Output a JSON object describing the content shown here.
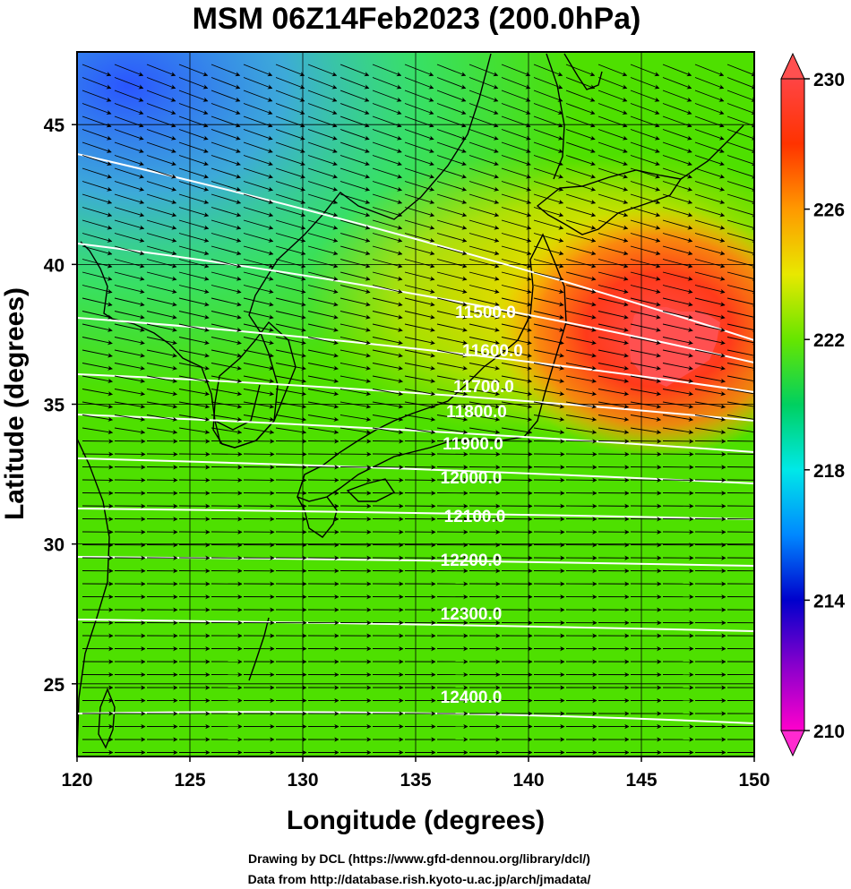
{
  "title": "MSM 06Z14Feb2023 (200.0hPa)",
  "x_axis": {
    "label": "Longitude (degrees)",
    "ticks": [
      "120",
      "125",
      "130",
      "135",
      "140",
      "145",
      "150"
    ],
    "range": [
      120,
      150
    ]
  },
  "y_axis": {
    "label": "Latitude  (degrees)",
    "ticks": [
      "25",
      "30",
      "35",
      "40",
      "45"
    ],
    "range": [
      22.4,
      47.6
    ]
  },
  "colorbar": {
    "ticks": [
      "230",
      "226",
      "222",
      "218",
      "214",
      "210"
    ],
    "range": [
      210,
      230
    ],
    "colors": [
      "#ff00cc",
      "#8800cc",
      "#0000cc",
      "#0088ff",
      "#00e8e8",
      "#00d060",
      "#66e600",
      "#e8e800",
      "#ff9900",
      "#ff3300",
      "#ff4444"
    ]
  },
  "contours": [
    {
      "label": "11500.0"
    },
    {
      "label": "11600.0"
    },
    {
      "label": "11700.0"
    },
    {
      "label": "11800.0"
    },
    {
      "label": "11900.0"
    },
    {
      "label": "12000.0"
    },
    {
      "label": "12100.0"
    },
    {
      "label": "12200.0"
    },
    {
      "label": "12300.0"
    },
    {
      "label": "12400.0"
    }
  ],
  "credits": [
    "Drawing by DCL (https://www.gfd-dennou.org/library/dcl/)",
    "Data from http://database.rish.kyoto-u.ac.jp/arch/jmadata/"
  ],
  "field_description": {
    "variable": "Temperature (K) shaded, geopotential height contours, wind vectors",
    "warm_core": {
      "lon": 146,
      "lat": 38,
      "value": 230
    },
    "cold_region": {
      "lon": 121,
      "lat": 46.5,
      "value": 217
    }
  }
}
